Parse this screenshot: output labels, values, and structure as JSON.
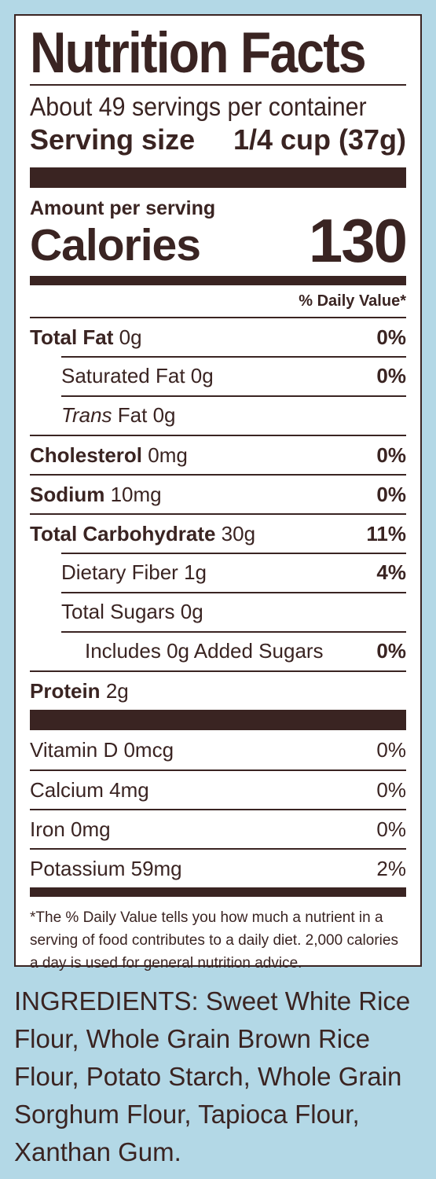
{
  "label": {
    "title": "Nutrition Facts",
    "servings_per_container": "About 49 servings per container",
    "serving_size_label": "Serving size",
    "serving_size_value": "1/4 cup (37g)",
    "amount_per_serving": "Amount per serving",
    "calories_label": "Calories",
    "calories_value": "130",
    "daily_value_header": "% Daily Value*",
    "nutrients": [
      {
        "name": "Total Fat",
        "amount": "0g",
        "dv": "0%"
      },
      {
        "name": "Saturated Fat",
        "amount": "0g",
        "dv": "0%"
      },
      {
        "name_italic": "Trans",
        "name": "Fat",
        "amount": "0g",
        "dv": ""
      },
      {
        "name": "Cholesterol",
        "amount": "0mg",
        "dv": "0%"
      },
      {
        "name": "Sodium",
        "amount": "10mg",
        "dv": "0%"
      },
      {
        "name": "Total Carbohydrate",
        "amount": "30g",
        "dv": "11%"
      },
      {
        "name": "Dietary Fiber",
        "amount": "1g",
        "dv": "4%"
      },
      {
        "name": "Total Sugars",
        "amount": "0g",
        "dv": ""
      },
      {
        "name": "Includes 0g Added Sugars",
        "amount": "",
        "dv": "0%"
      },
      {
        "name": "Protein",
        "amount": "2g",
        "dv": ""
      }
    ],
    "vitamins": [
      {
        "name": "Vitamin D 0mcg",
        "dv": "0%"
      },
      {
        "name": "Calcium 4mg",
        "dv": "0%"
      },
      {
        "name": "Iron 0mg",
        "dv": "0%"
      },
      {
        "name": "Potassium 59mg",
        "dv": "2%"
      }
    ],
    "footnote": "*The % Daily Value tells you how much a nutrient in a serving of food contributes to a daily diet. 2,000 calories a day is used for general nutrition advice."
  },
  "ingredients": "INGREDIENTS: Sweet White Rice Flour, Whole Grain Brown Rice Flour, Potato Starch, Whole Grain Sorghum Flour, Tapioca Flour, Xanthan Gum."
}
